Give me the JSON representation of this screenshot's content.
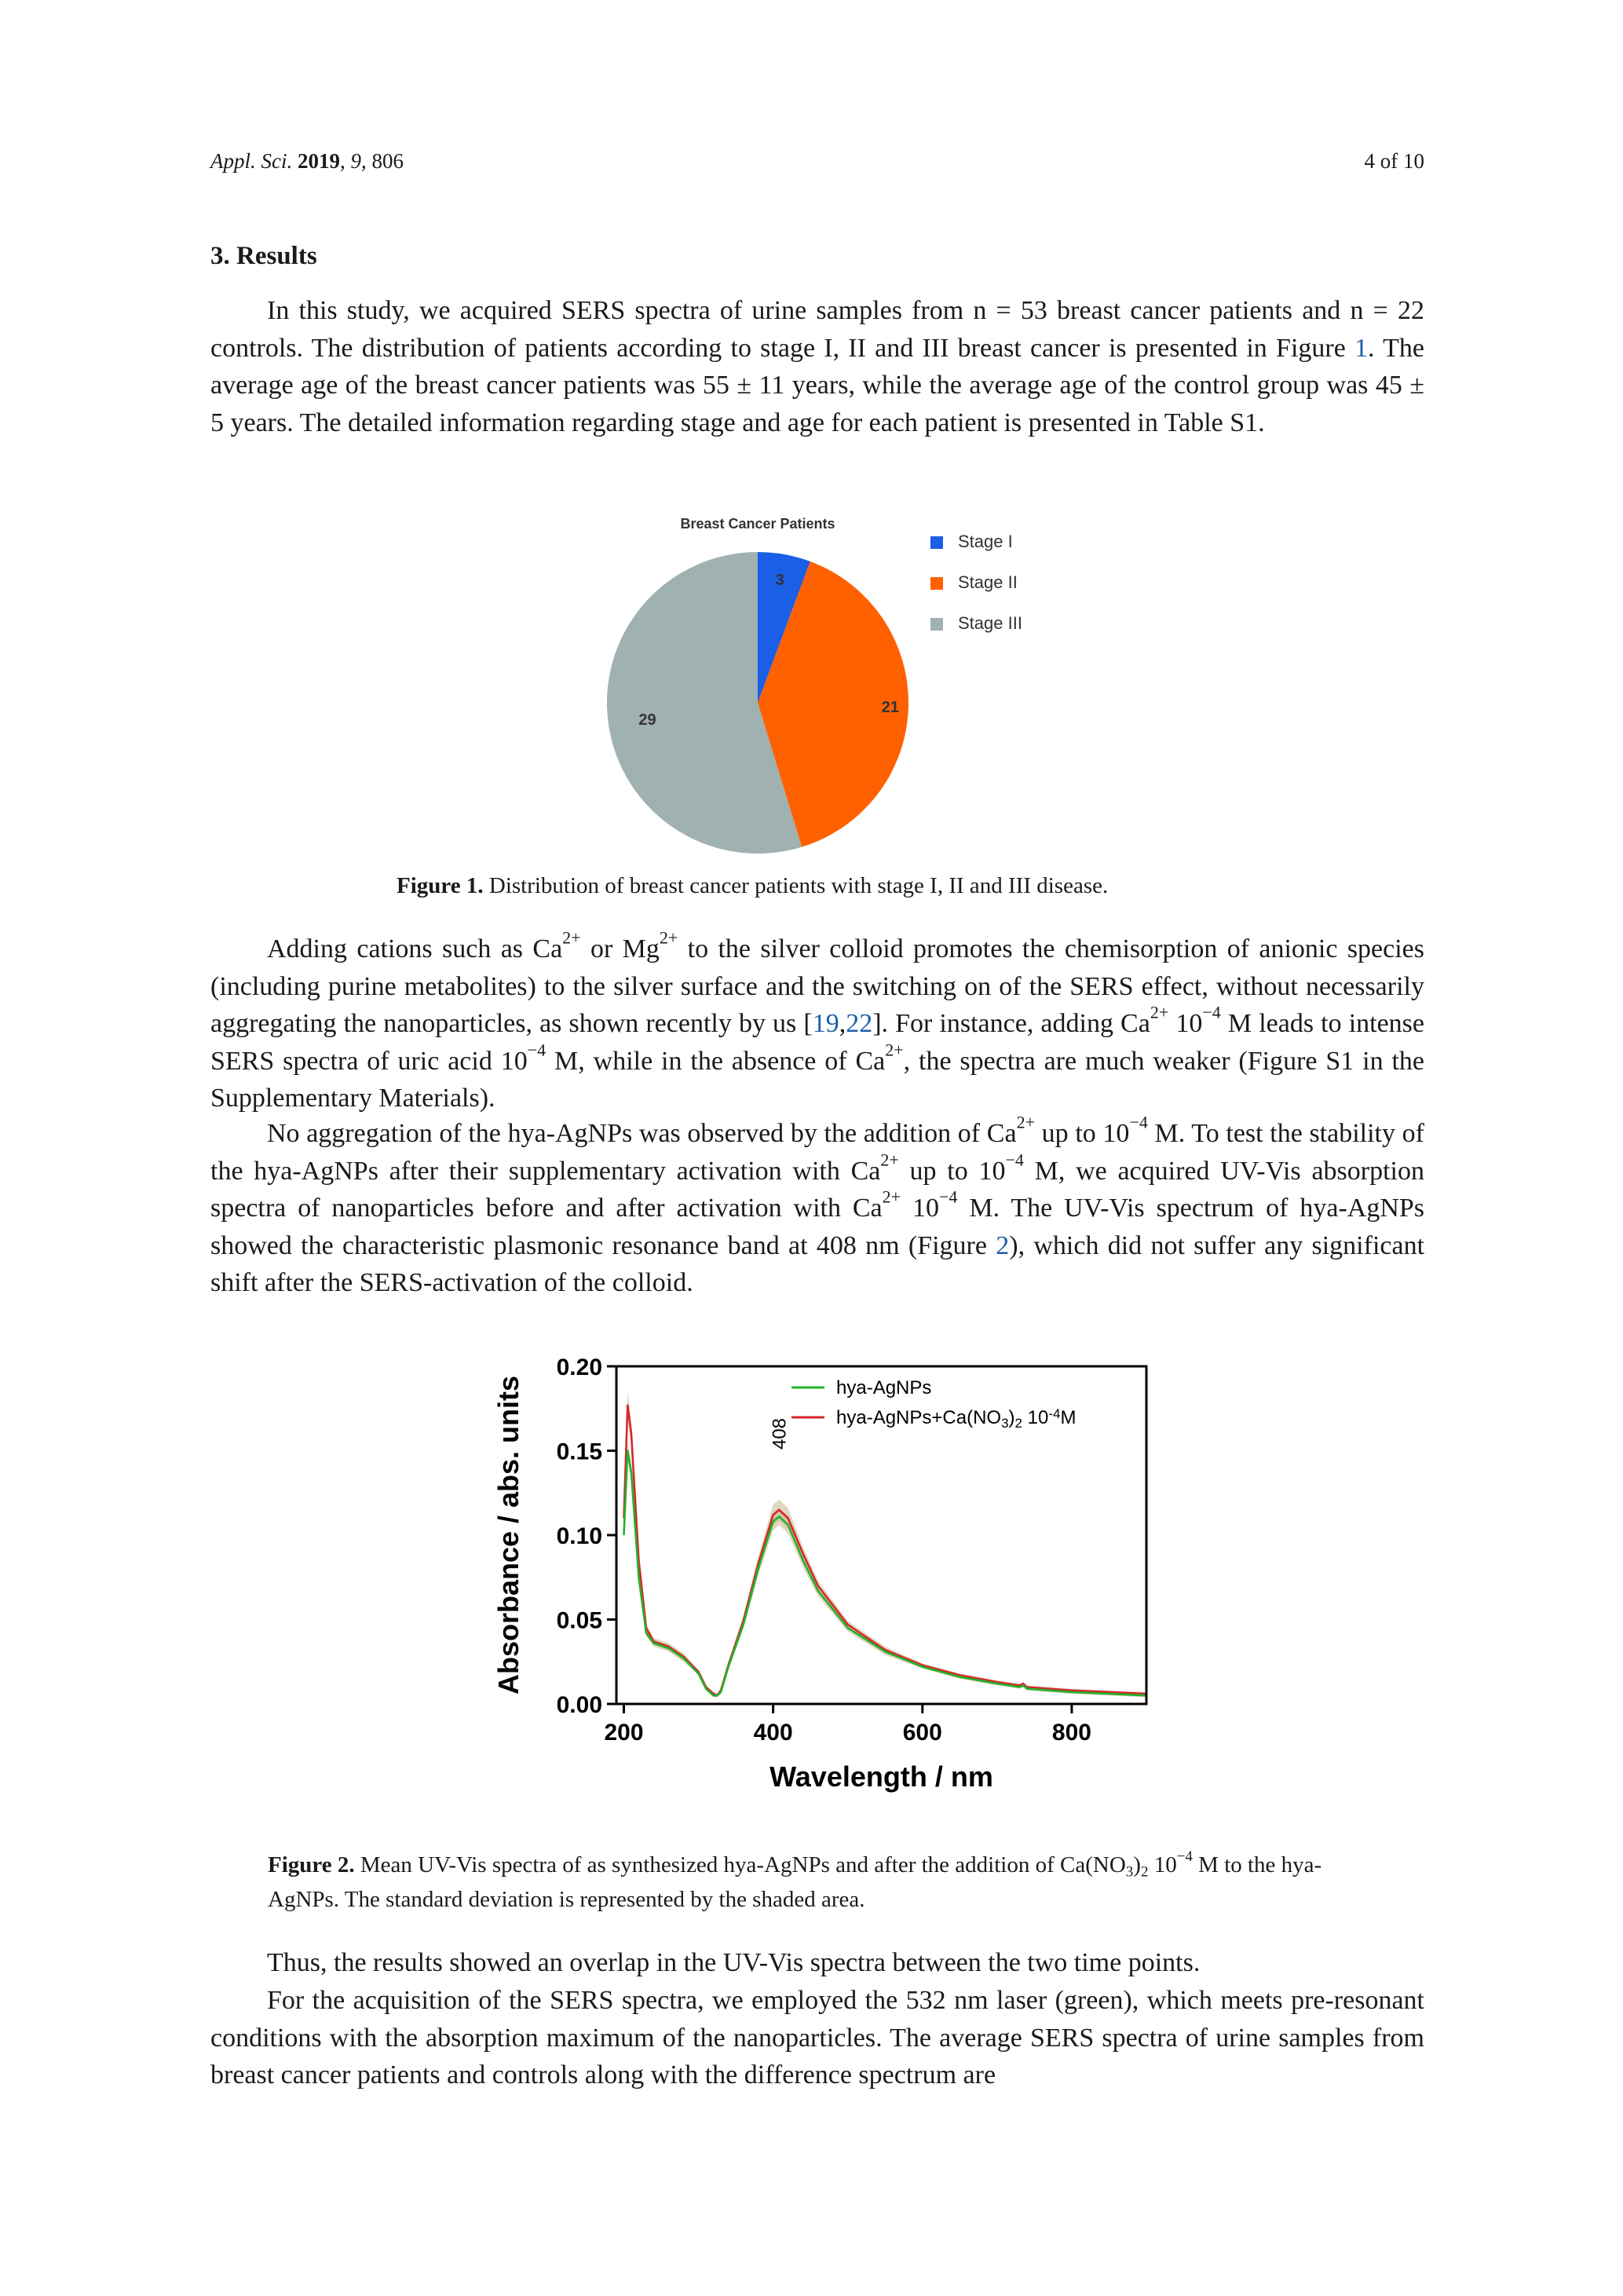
{
  "header": {
    "journal": "Appl. Sci.",
    "year": "2019",
    "volume": "9",
    "article": "806",
    "page": "4 of 10"
  },
  "section": {
    "number": "3.",
    "title": "Results"
  },
  "text": {
    "p1": {
      "a": "In this study, we acquired SERS spectra of urine samples from n = 53 breast cancer patients and n = 22 controls. The distribution of patients according to stage I, II and III breast cancer is presented in ",
      "fig_word": "Figure ",
      "fig_num": "1",
      "b": ". The average age of the breast cancer patients was 55 ± 11 years, while the average age of the control group was 45 ± 5 years. The detailed information regarding stage and age for each patient is presented in Table S1."
    },
    "p2": {
      "a": "Adding cations such as Ca",
      "ion_charge": "2+",
      "b": " or Mg",
      "c": " to the silver colloid promotes the chemisorption of anionic species (including purine metabolites) to the silver surface and the switching on of the SERS effect, without necessarily aggregating the nanoparticles, as shown recently by us [",
      "ref1": "19",
      "ref_sep": ",",
      "ref2": "22",
      "d": "]. For instance, adding Ca",
      "e": " 10",
      "exponent": "−4",
      "f": " M leads to intense SERS spectra of uric acid 10",
      "g": " M, while in the absence of Ca",
      "h": ", the spectra are much weaker (Figure S1 in the Supplementary Materials)."
    },
    "p3": {
      "a": "No aggregation of the hya-AgNPs was observed by the addition of Ca",
      "b": " up to 10",
      "c": " M. To test the stability of the hya-AgNPs after their supplementary activation with Ca",
      "d": " M, we acquired UV-Vis absorption spectra of nanoparticles before and after activation with Ca",
      "e": " M. The UV-Vis spectrum of hya-AgNPs showed the characteristic plasmonic resonance band at 408 nm (Figure ",
      "fig_num": "2",
      "f": "), which did not suffer any significant shift after the SERS-activation of the colloid."
    },
    "p4": "Thus, the results showed an overlap in the UV-Vis spectra between the two time points.",
    "p5": "For the acquisition of the SERS spectra, we employed the 532 nm laser (green), which meets pre-resonant conditions with the absorption maximum of the nanoparticles. The average SERS spectra of urine samples from breast cancer patients and controls along with the difference spectrum are"
  },
  "figure1": {
    "label": "Figure 1.",
    "caption": " Distribution of breast cancer patients with stage I, II and III disease."
  },
  "figure2": {
    "label": "Figure 2.",
    "caption_a": " Mean UV-Vis spectra of as synthesized hya-AgNPs and after the addition of Ca(NO",
    "sub": "3",
    "caption_b": ")",
    "sub2": "2",
    "caption_c": " 10",
    "exp": "−4",
    "caption_d": " M to the hya-AgNPs. The standard deviation is represented by the shaded area."
  },
  "chart_data": [
    {
      "type": "pie",
      "title": "Breast Cancer Patients",
      "categories": [
        "Stage I",
        "Stage II",
        "Stage III"
      ],
      "values": [
        3,
        21,
        29
      ],
      "colors": [
        "#1a5fe6",
        "#ff6100",
        "#9fb1b0"
      ],
      "legend_position": "right"
    },
    {
      "type": "line",
      "xlabel": "Wavelength / nm",
      "ylabel": "Absorbance / abs. units",
      "xlim": [
        190,
        900
      ],
      "ylim": [
        0,
        0.2
      ],
      "xticks": [
        "200",
        "400",
        "600",
        "800"
      ],
      "yticks": [
        "0.00",
        "0.05",
        "0.10",
        "0.15",
        "0.20"
      ],
      "legend_position": "top-right",
      "annotation": "408",
      "grid": false,
      "x": [
        200,
        205,
        210,
        220,
        230,
        240,
        260,
        280,
        300,
        310,
        320,
        325,
        330,
        340,
        360,
        380,
        400,
        408,
        420,
        440,
        460,
        500,
        550,
        600,
        650,
        700,
        730,
        735,
        740,
        800,
        850,
        900
      ],
      "series": [
        {
          "name": "hya-AgNPs",
          "legend": [
            "hya-AgNPs",
            ""
          ],
          "color": "#22b22a",
          "values": [
            0.1,
            0.15,
            0.137,
            0.075,
            0.042,
            0.036,
            0.033,
            0.027,
            0.018,
            0.009,
            0.005,
            0.005,
            0.007,
            0.022,
            0.047,
            0.08,
            0.108,
            0.111,
            0.106,
            0.085,
            0.067,
            0.045,
            0.031,
            0.022,
            0.016,
            0.012,
            0.01,
            0.011,
            0.009,
            0.007,
            0.006,
            0.005
          ],
          "sd": [
            0.004,
            0.005,
            0.005,
            0.003,
            0.002,
            0.002,
            0.002,
            0.002,
            0.001,
            0.001,
            0.001,
            0.001,
            0.001,
            0.002,
            0.003,
            0.004,
            0.005,
            0.005,
            0.005,
            0.004,
            0.003,
            0.002,
            0.002,
            0.001,
            0.001,
            0.001,
            0.001,
            0.001,
            0.001,
            0.001,
            0.001,
            0.001
          ]
        },
        {
          "name": "hya-AgNPs+Ca(NO3)2 10-4M",
          "legend": [
            "hya-AgNPs+Ca(NO",
            "3",
            ")",
            "2",
            " 10",
            "-4",
            "M"
          ],
          "color": "#d8262b",
          "values": [
            0.11,
            0.177,
            0.16,
            0.085,
            0.045,
            0.037,
            0.034,
            0.028,
            0.019,
            0.01,
            0.006,
            0.005,
            0.008,
            0.023,
            0.049,
            0.083,
            0.112,
            0.115,
            0.11,
            0.089,
            0.07,
            0.047,
            0.032,
            0.023,
            0.017,
            0.013,
            0.011,
            0.012,
            0.01,
            0.008,
            0.007,
            0.006
          ],
          "sd": [
            0.005,
            0.008,
            0.007,
            0.004,
            0.002,
            0.002,
            0.002,
            0.002,
            0.001,
            0.001,
            0.001,
            0.001,
            0.001,
            0.002,
            0.003,
            0.004,
            0.006,
            0.006,
            0.006,
            0.004,
            0.003,
            0.002,
            0.002,
            0.001,
            0.001,
            0.001,
            0.001,
            0.001,
            0.001,
            0.001,
            0.001,
            0.001
          ]
        }
      ],
      "shade_color": "#c8b48a"
    }
  ]
}
